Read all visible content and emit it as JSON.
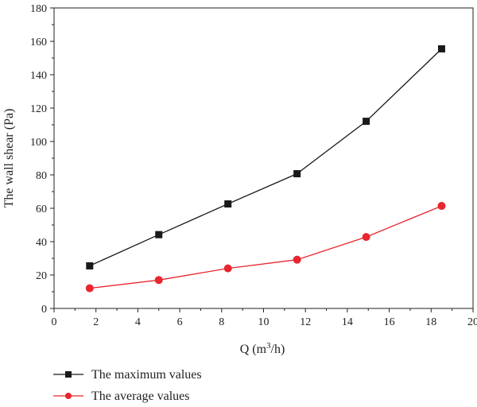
{
  "chart_data": {
    "type": "line",
    "title": "",
    "xlabel": {
      "prefix": "Q (m",
      "sup": "3",
      "suffix": "/h)"
    },
    "ylabel": "The wall shear (Pa)",
    "xlim": [
      0,
      20
    ],
    "ylim": [
      0,
      180
    ],
    "xticks": [
      0,
      2,
      4,
      6,
      8,
      10,
      12,
      14,
      16,
      18,
      20
    ],
    "yticks": [
      0,
      20,
      40,
      60,
      80,
      100,
      120,
      140,
      160,
      180
    ],
    "grid": false,
    "legend_position": "bottom-left",
    "series": [
      {
        "name": "The maximum values",
        "color": "#1a1a1a",
        "marker": "square",
        "x": [
          1.7,
          5.0,
          8.3,
          11.6,
          14.9,
          18.5
        ],
        "y": [
          25.5,
          44.2,
          62.6,
          80.7,
          112.1,
          155.5
        ]
      },
      {
        "name": "The average values",
        "color": "#e8262e",
        "marker": "circle",
        "x": [
          1.7,
          5.0,
          8.3,
          11.6,
          14.9,
          18.5
        ],
        "y": [
          12.1,
          17.0,
          24.0,
          29.2,
          42.8,
          61.4
        ]
      }
    ]
  }
}
